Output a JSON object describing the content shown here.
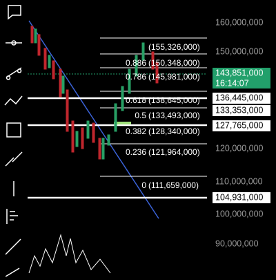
{
  "price_axis": [
    "160,000,000",
    "150,000,000",
    "120,000,000",
    "110,000,000",
    "100,000,000",
    "90,000,000"
  ],
  "fib_levels": [
    {
      "ratio": null,
      "price": "(155,326,000)"
    },
    {
      "ratio": "0.886",
      "price": "(150,348,000)"
    },
    {
      "ratio": "0.786",
      "price": "(145,981,000)"
    },
    {
      "ratio": "0.618",
      "price": "(138,645,000)"
    },
    {
      "ratio": "0.5",
      "price": "(133,493,000)"
    },
    {
      "ratio": "0.382",
      "price": "(128,340,000)"
    },
    {
      "ratio": "0.236",
      "price": "(121,964,000)"
    },
    {
      "ratio": "0",
      "price": "(111,659,000)"
    }
  ],
  "current_price": {
    "price": "143,851,000",
    "time": "16:14:07"
  },
  "price_tags": [
    "136,445,000",
    "133,353,000",
    "127,765,000",
    "104,931,000"
  ]
}
